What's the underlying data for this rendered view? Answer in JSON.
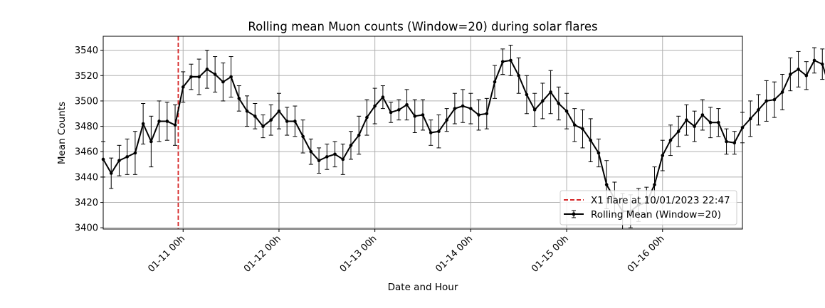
{
  "chart_data": {
    "type": "line",
    "title": "Rolling mean Muon counts (Window=20) during solar flares",
    "xlabel": "Date and Hour",
    "ylabel": "Mean Counts",
    "x_start": "2023-01-10 04:00",
    "x_step_hours": 2,
    "xlim": [
      "2023-01-10 04:00",
      "2023-01-16 20:00"
    ],
    "ylim": [
      3399,
      3551
    ],
    "yticks": [
      3400,
      3420,
      3440,
      3460,
      3480,
      3500,
      3520,
      3540
    ],
    "xticks": [
      {
        "t": "2023-01-11 00:00",
        "label": "01-11 00h"
      },
      {
        "t": "2023-01-12 00:00",
        "label": "01-12 00h"
      },
      {
        "t": "2023-01-13 00:00",
        "label": "01-13 00h"
      },
      {
        "t": "2023-01-14 00:00",
        "label": "01-14 00h"
      },
      {
        "t": "2023-01-15 00:00",
        "label": "01-15 00h"
      },
      {
        "t": "2023-01-16 00:00",
        "label": "01-16 00h"
      }
    ],
    "grid": true,
    "legend_position": "lower right",
    "flare": {
      "time": "2023-01-10 22:47",
      "label": "X1 flare at 10/01/2023 22:47",
      "color": "#d62728"
    },
    "series": [
      {
        "name": "Rolling Mean (Window=20)",
        "color": "#000000",
        "values": [
          3454,
          3443,
          3453,
          3456,
          3459,
          3482,
          3468,
          3484,
          3484,
          3481,
          3511,
          3519,
          3519,
          3525,
          3521,
          3515,
          3519,
          3502,
          3492,
          3488,
          3480,
          3485,
          3492,
          3484,
          3484,
          3472,
          3460,
          3453,
          3456,
          3458,
          3454,
          3465,
          3473,
          3487,
          3496,
          3503,
          3491,
          3493,
          3497,
          3488,
          3489,
          3475,
          3476,
          3485,
          3494,
          3496,
          3494,
          3489,
          3490,
          3515,
          3531,
          3532,
          3520,
          3505,
          3493,
          3500,
          3507,
          3498,
          3492,
          3481,
          3478,
          3469,
          3459,
          3434,
          3423,
          3413,
          3413,
          3418,
          3420,
          3434,
          3457,
          3469,
          3476,
          3485,
          3480,
          3489,
          3483,
          3483,
          3468,
          3467,
          3479,
          3486,
          3493,
          3500,
          3501,
          3507,
          3521,
          3525,
          3520,
          3532,
          3529,
          3509,
          3508,
          3495,
          3487,
          3505,
          3507,
          3502,
          3490,
          3476,
          3481,
          3468,
          3480,
          3477,
          3476,
          3477,
          3470,
          3485,
          3492,
          3503,
          3504,
          3490,
          3488,
          3490,
          3498,
          3510,
          3497,
          3491,
          3480
        ],
        "errors": [
          14,
          12,
          12,
          14,
          17,
          16,
          20,
          16,
          15,
          16,
          12,
          10,
          14,
          15,
          14,
          15,
          16,
          10,
          12,
          10,
          9,
          12,
          14,
          11,
          12,
          13,
          10,
          10,
          10,
          10,
          12,
          11,
          15,
          14,
          14,
          9,
          8,
          8,
          12,
          13,
          12,
          10,
          13,
          9,
          12,
          13,
          12,
          12,
          12,
          13,
          10,
          12,
          14,
          15,
          13,
          14,
          17,
          13,
          14,
          13,
          15,
          17,
          11,
          19,
          13,
          14,
          13,
          13,
          12,
          14,
          12,
          12,
          12,
          12,
          12,
          12,
          12,
          11,
          10,
          9,
          12,
          14,
          12,
          16,
          14,
          14,
          13,
          14,
          11,
          10,
          12,
          14,
          17,
          15,
          14,
          13,
          12,
          15,
          10,
          12,
          12,
          9,
          9,
          12,
          10,
          12,
          17,
          13,
          12,
          16,
          15,
          13,
          10,
          11,
          14,
          10,
          11,
          13,
          14
        ]
      }
    ]
  }
}
